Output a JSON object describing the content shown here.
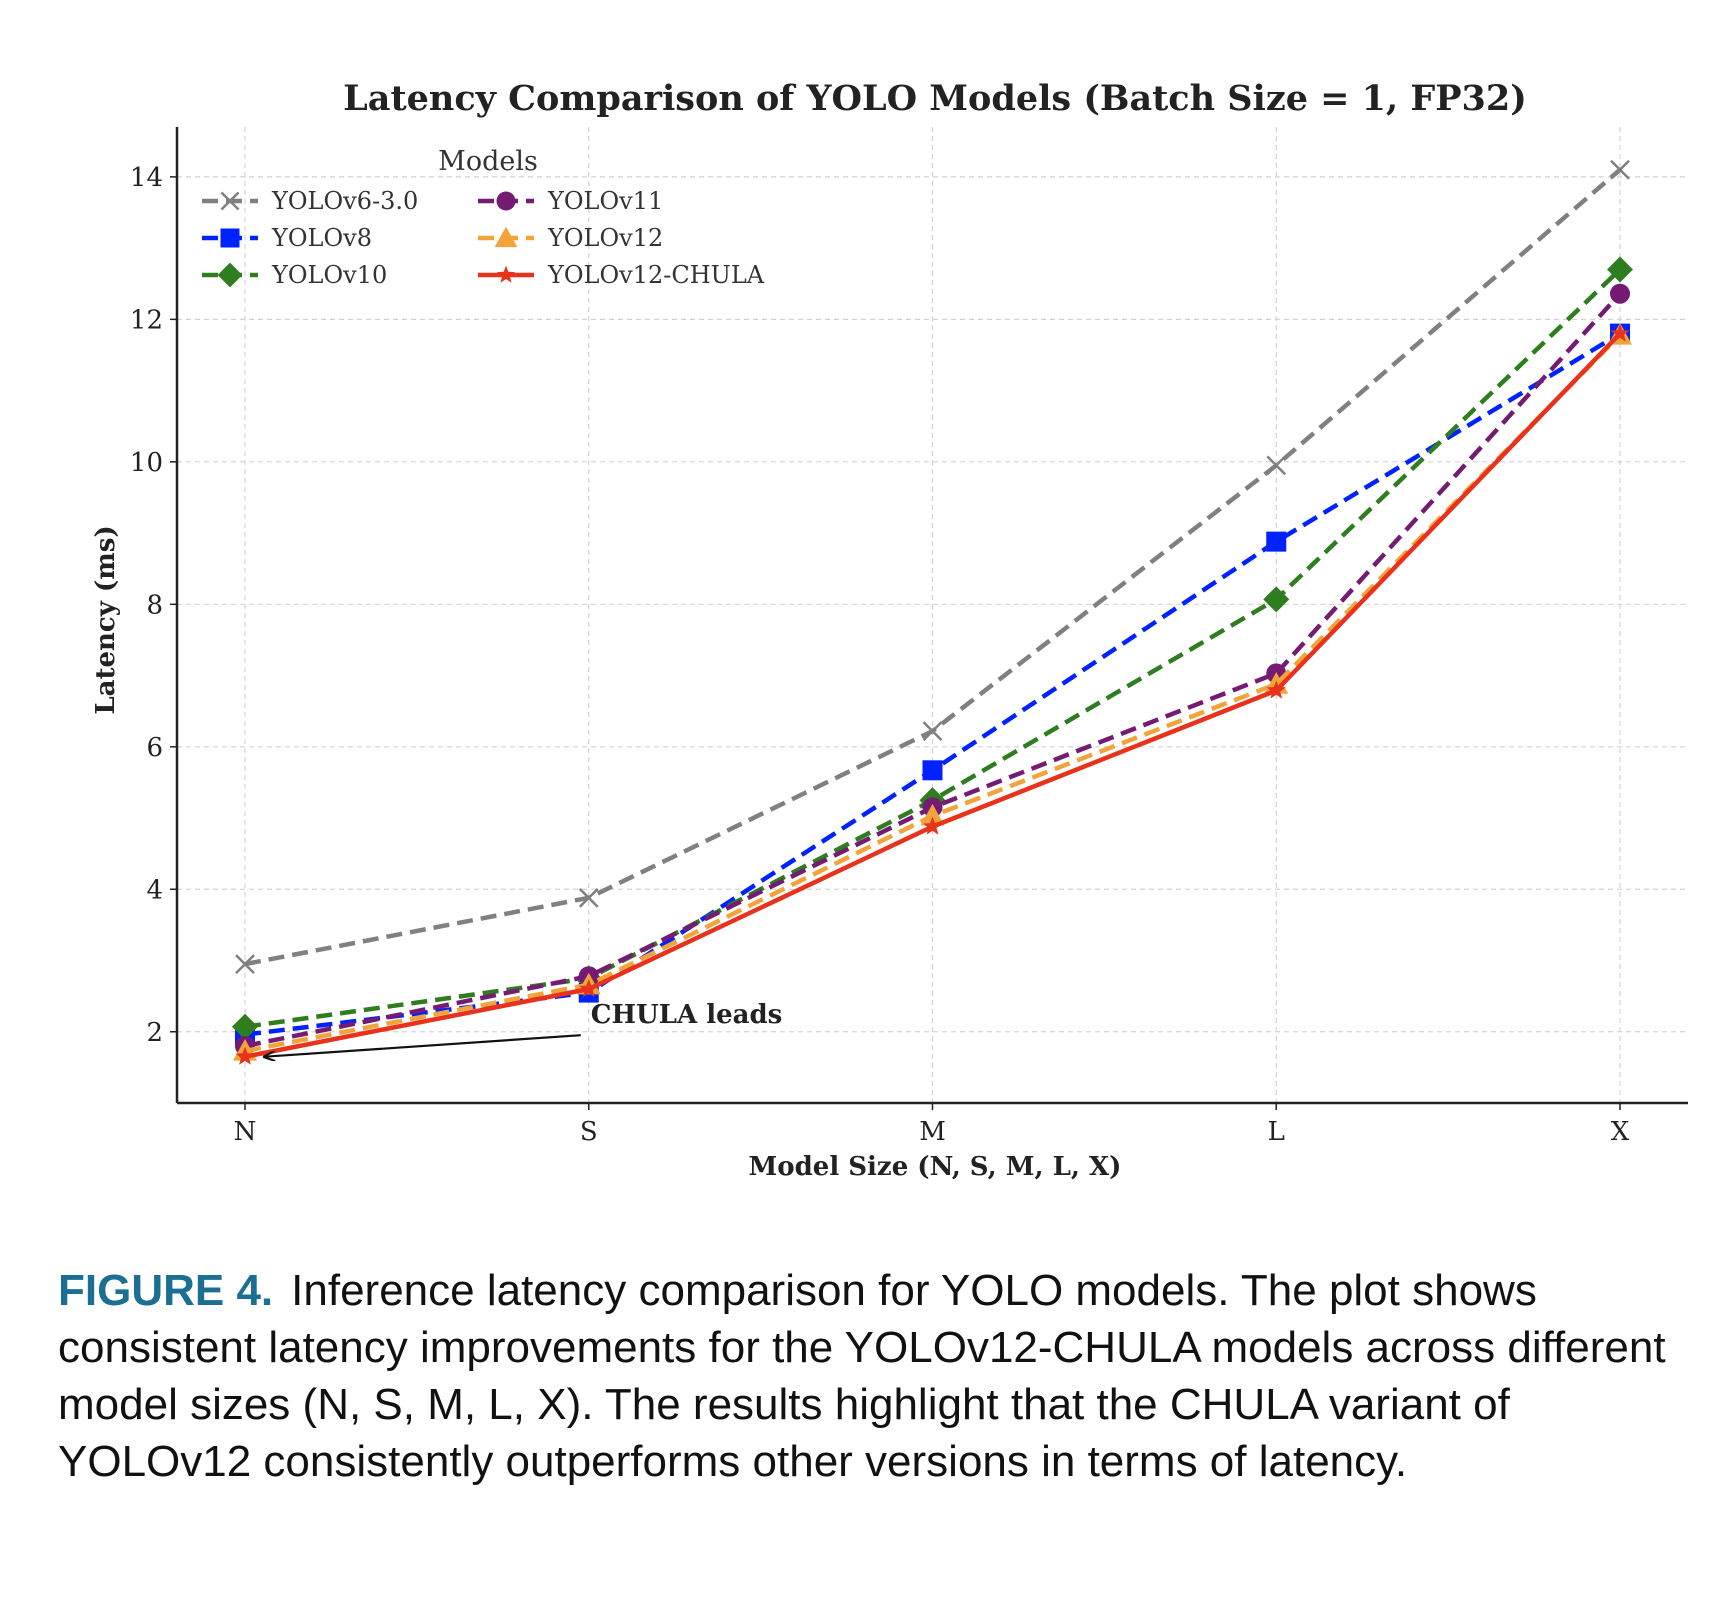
{
  "chart_data": {
    "type": "line",
    "title": "Latency Comparison of YOLO Models (Batch Size = 1, FP32)",
    "xlabel": "Model Size (N, S, M, L, X)",
    "ylabel": "Latency (ms)",
    "categories": [
      "N",
      "S",
      "M",
      "L",
      "X"
    ],
    "ylim": [
      1.0,
      14.7
    ],
    "yticks": [
      2,
      4,
      6,
      8,
      10,
      12,
      14
    ],
    "grid": true,
    "legend_title": "Models",
    "legend_position": "top-left",
    "series": [
      {
        "name": "YOLOv6-3.0",
        "values": [
          2.95,
          3.88,
          6.22,
          9.95,
          14.1
        ],
        "color": "#808080",
        "marker": "x",
        "dash": "dashed"
      },
      {
        "name": "YOLOv8",
        "values": [
          1.96,
          2.55,
          5.67,
          8.88,
          11.8
        ],
        "color": "#0022ff",
        "marker": "square",
        "dash": "dashed"
      },
      {
        "name": "YOLOv10",
        "values": [
          2.07,
          2.75,
          5.25,
          8.07,
          12.7
        ],
        "color": "#2e7d1e",
        "marker": "diamond",
        "dash": "dashed"
      },
      {
        "name": "YOLOv11",
        "values": [
          1.8,
          2.78,
          5.15,
          7.03,
          12.36
        ],
        "color": "#741c74",
        "marker": "circle",
        "dash": "dashed"
      },
      {
        "name": "YOLOv12",
        "values": [
          1.73,
          2.66,
          5.03,
          6.88,
          11.78
        ],
        "color": "#f2a33a",
        "marker": "triangle",
        "dash": "dashed"
      },
      {
        "name": "YOLOv12-CHULA",
        "values": [
          1.65,
          2.6,
          4.88,
          6.79,
          11.8
        ],
        "color": "#e8321c",
        "marker": "star",
        "dash": "solid"
      }
    ],
    "annotation": {
      "text": "CHULA leads",
      "x_index": 0,
      "y": 1.65,
      "text_x": 1.0,
      "text_y": 2.12
    }
  },
  "caption": {
    "label": "FIGURE 4.",
    "text": "Inference latency comparison for YOLO models. The plot shows consistent latency improvements for the YOLOv12-CHULA models across different model sizes (N, S, M, L, X). The results highlight that the CHULA variant of YOLOv12 consistently outperforms other versions in terms of latency."
  }
}
